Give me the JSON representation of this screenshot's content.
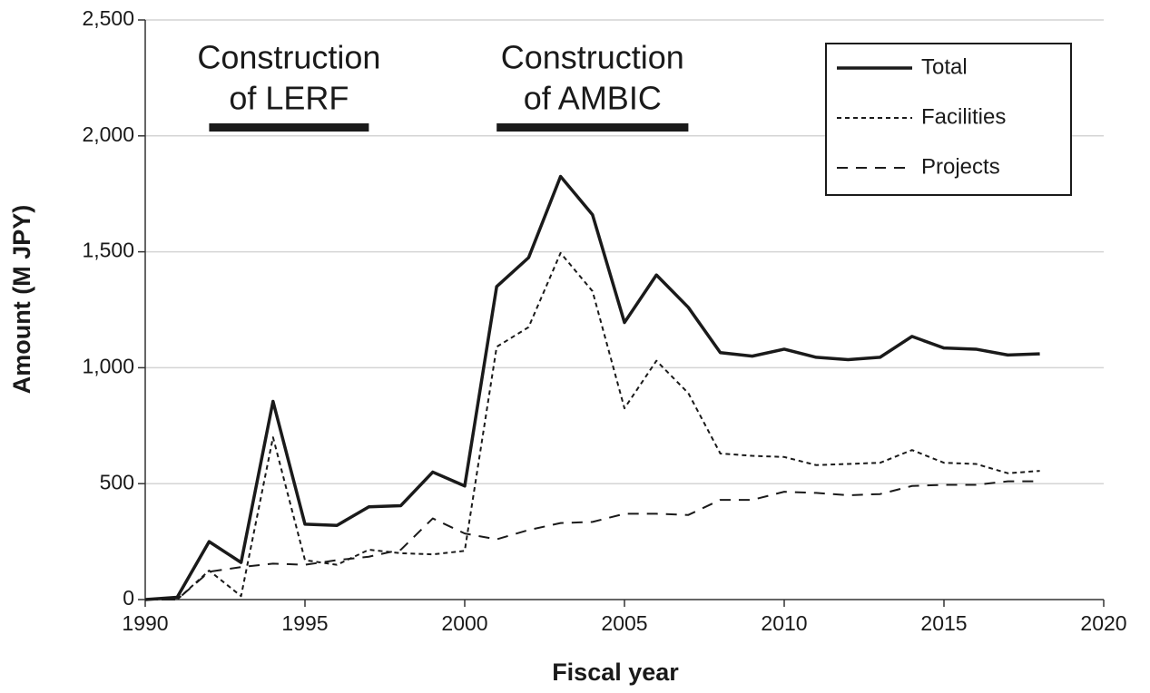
{
  "chart_data": {
    "type": "line",
    "x": [
      1990,
      1991,
      1992,
      1993,
      1994,
      1995,
      1996,
      1997,
      1998,
      1999,
      2000,
      2001,
      2002,
      2003,
      2004,
      2005,
      2006,
      2007,
      2008,
      2009,
      2010,
      2011,
      2012,
      2013,
      2014,
      2015,
      2016,
      2017,
      2018
    ],
    "series": [
      {
        "name": "Total",
        "color": "#1a1a1a",
        "line_style": "solid",
        "values": [
          0,
          10,
          250,
          160,
          855,
          325,
          320,
          400,
          405,
          550,
          490,
          1350,
          1475,
          1825,
          1660,
          1195,
          1400,
          1260,
          1065,
          1050,
          1080,
          1045,
          1035,
          1045,
          1135,
          1085,
          1080,
          1055,
          1060
        ]
      },
      {
        "name": "Facilities",
        "color": "#1a1a1a",
        "line_style": "dotted",
        "values": [
          0,
          0,
          125,
          15,
          700,
          170,
          150,
          215,
          200,
          195,
          210,
          1090,
          1175,
          1495,
          1330,
          825,
          1030,
          890,
          630,
          620,
          615,
          580,
          585,
          590,
          645,
          590,
          585,
          545,
          555
        ]
      },
      {
        "name": "Projects",
        "color": "#1a1a1a",
        "line_style": "dashed",
        "values": [
          0,
          0,
          120,
          140,
          155,
          150,
          170,
          185,
          215,
          350,
          285,
          260,
          300,
          330,
          335,
          370,
          370,
          365,
          430,
          430,
          465,
          460,
          450,
          455,
          490,
          495,
          495,
          510,
          510
        ]
      }
    ],
    "xlabel": "Fiscal year",
    "ylabel": "Amount (M JPY)",
    "xlim": [
      1990,
      2020
    ],
    "xticks": [
      1990,
      1995,
      2000,
      2005,
      2010,
      2015,
      2020
    ],
    "ylim": [
      0,
      2500
    ],
    "yticks": [
      0,
      500,
      {
        "value": 1000,
        "label": "1,000"
      },
      {
        "value": 1500,
        "label": "1,500"
      },
      {
        "value": 2000,
        "label": "2,000"
      },
      {
        "value": 2500,
        "label": "2,500"
      }
    ],
    "grid": true,
    "legend": "upper right",
    "annotations": [
      {
        "lines": [
          "Construction",
          "of LERF"
        ],
        "span": [
          1992,
          1997
        ]
      },
      {
        "lines": [
          "Construction",
          "of AMBIC"
        ],
        "span": [
          2001,
          2007
        ]
      }
    ]
  }
}
